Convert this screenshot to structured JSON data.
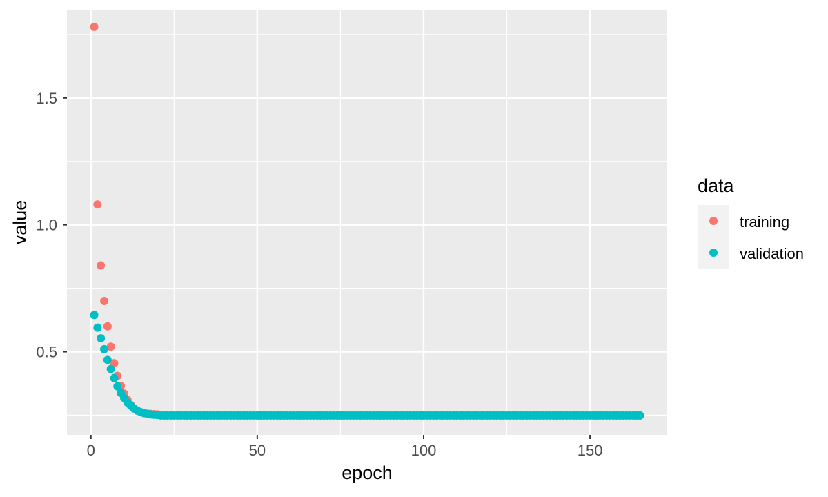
{
  "chart_data": {
    "type": "scatter",
    "title": "",
    "xlabel": "epoch",
    "ylabel": "value",
    "xlim": [
      -7.2,
      173.2
    ],
    "ylim": [
      0.1725,
      1.8475
    ],
    "x_ticks": [
      0,
      50,
      100,
      150
    ],
    "x_tick_labels": [
      "0",
      "50",
      "100",
      "150"
    ],
    "y_ticks": [
      0.5,
      1.0,
      1.5
    ],
    "y_tick_labels": [
      "0.5",
      "1.0",
      "1.5"
    ],
    "grid": true,
    "legend": {
      "title": "data",
      "position": "right"
    },
    "series": [
      {
        "name": "training",
        "color": "#F8766D",
        "x_start": 1,
        "x_end": 165,
        "values_head": [
          1.78,
          1.08,
          0.84,
          0.7,
          0.6,
          0.52,
          0.455,
          0.405,
          0.365,
          0.335,
          0.31,
          0.29,
          0.277,
          0.268,
          0.262,
          0.258,
          0.256,
          0.255,
          0.254,
          0.253
        ],
        "plateau": 0.249
      },
      {
        "name": "validation",
        "color": "#00BFC4",
        "x_start": 1,
        "x_end": 165,
        "values_head": [
          0.645,
          0.595,
          0.553,
          0.51,
          0.468,
          0.432,
          0.396,
          0.364,
          0.338,
          0.318,
          0.3,
          0.287,
          0.276,
          0.268,
          0.262,
          0.258,
          0.255,
          0.253,
          0.252,
          0.251
        ],
        "plateau": 0.249
      }
    ]
  }
}
